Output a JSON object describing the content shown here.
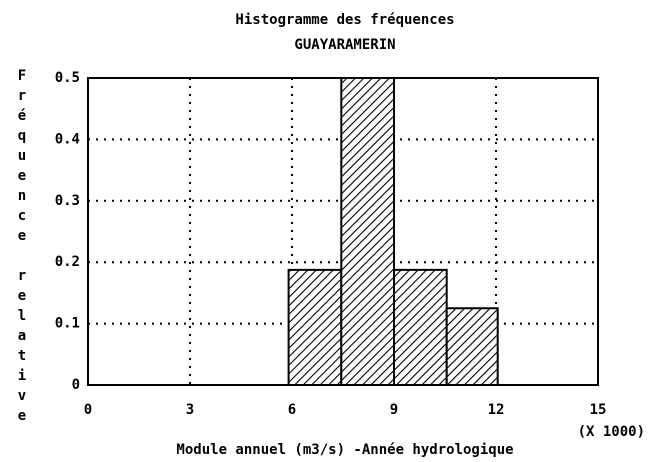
{
  "chart_data": {
    "type": "histogram",
    "title": "Histogramme des fréquences",
    "subtitle": "GUAYARAMERIN",
    "xlabel": "Module annuel (m3/s) -Année hydrologique",
    "ylabel": "Fréquence relative",
    "x_multiplier": "(X 1000)",
    "bins": [
      5.9,
      7.45,
      9.0,
      10.55,
      12.05
    ],
    "values": [
      0.1875,
      0.5,
      0.1875,
      0.125
    ],
    "xlim": [
      0,
      15
    ],
    "xticks": [
      0,
      3,
      6,
      9,
      12,
      15
    ],
    "ylim": [
      0,
      0.5
    ],
    "yticks": [
      0,
      0.1,
      0.2,
      0.3,
      0.4,
      0.5
    ],
    "grid": true,
    "color": "#000000"
  }
}
